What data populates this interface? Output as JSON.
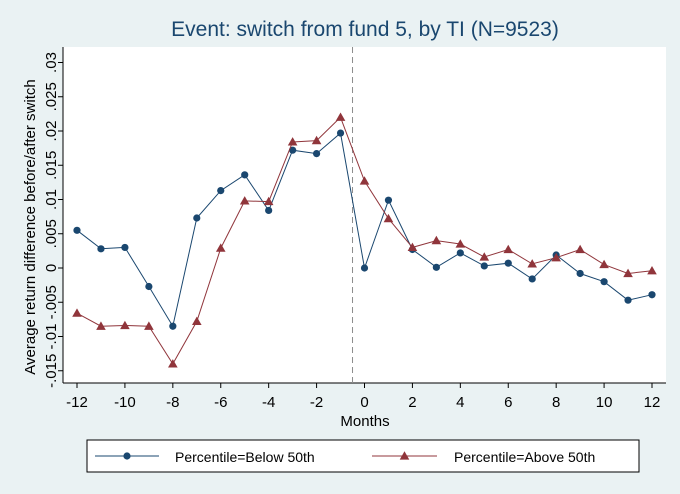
{
  "chart_data": {
    "type": "line",
    "title": "Event: switch from fund 5, by TI (N=9523)",
    "xlabel": "Months",
    "ylabel": "Average return difference before/after switch",
    "xlim": [
      -12,
      12
    ],
    "ylim": [
      -0.015,
      0.03
    ],
    "xticks": [
      "-12",
      "-10",
      "-8",
      "-6",
      "-4",
      "-2",
      "0",
      "2",
      "4",
      "6",
      "8",
      "10",
      "12"
    ],
    "yticks": [
      "-.015",
      "-.01",
      "-.005",
      "0",
      ".005",
      ".01",
      ".015",
      ".02",
      ".025",
      ".03"
    ],
    "event_line_x": -0.5,
    "grid": false,
    "legend_position": "bottom",
    "x": [
      -12,
      -11,
      -10,
      -9,
      -8,
      -7,
      -6,
      -5,
      -4,
      -3,
      -2,
      -1,
      0,
      1,
      2,
      3,
      4,
      5,
      6,
      7,
      8,
      9,
      10,
      11,
      12
    ],
    "series": [
      {
        "name": "Percentile=Below 50th",
        "color": "#1a476f",
        "marker": "circle",
        "values": [
          0.0055,
          0.0028,
          0.003,
          -0.0027,
          -0.0085,
          0.0073,
          0.0113,
          0.0136,
          0.0084,
          0.0172,
          0.0167,
          0.0197,
          0.0,
          0.0099,
          0.0027,
          0.0001,
          0.0022,
          0.0003,
          0.0007,
          -0.0016,
          0.0019,
          -0.0008,
          -0.002,
          -0.0047,
          -0.0039
        ]
      },
      {
        "name": "Percentile=Above 50th",
        "color": "#90353b",
        "marker": "triangle",
        "values": [
          -0.0066,
          -0.0085,
          -0.0084,
          -0.0085,
          -0.014,
          -0.0078,
          0.0029,
          0.0098,
          0.0097,
          0.0184,
          0.0186,
          0.022,
          0.0127,
          0.0072,
          0.003,
          0.004,
          0.0035,
          0.0016,
          0.0027,
          0.0006,
          0.0015,
          0.0027,
          0.0005,
          -0.0008,
          -0.0004
        ]
      }
    ]
  }
}
